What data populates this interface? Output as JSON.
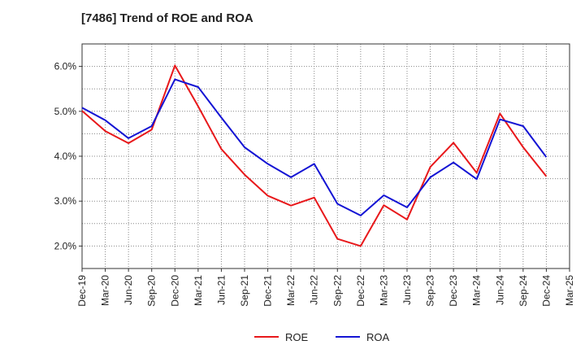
{
  "chart_data": {
    "type": "line",
    "title": "[7486]  Trend of ROE and ROA",
    "x": [
      "Dec-19",
      "Mar-20",
      "Jun-20",
      "Sep-20",
      "Dec-20",
      "Mar-21",
      "Jun-21",
      "Sep-21",
      "Dec-21",
      "Mar-22",
      "Jun-22",
      "Sep-22",
      "Dec-22",
      "Mar-23",
      "Jun-23",
      "Sep-23",
      "Dec-23",
      "Mar-24",
      "Jun-24",
      "Sep-24",
      "Dec-24",
      "Mar-25"
    ],
    "series": [
      {
        "name": "ROE",
        "color": "#e8181b",
        "values": [
          5.01,
          4.56,
          4.29,
          4.59,
          6.02,
          5.11,
          4.16,
          3.59,
          3.12,
          2.9,
          3.08,
          2.16,
          2.0,
          2.91,
          2.59,
          3.76,
          4.3,
          3.63,
          4.95,
          4.2,
          3.55,
          null
        ]
      },
      {
        "name": "ROA",
        "color": "#1414d4",
        "values": [
          5.08,
          4.8,
          4.4,
          4.67,
          5.71,
          5.54,
          4.86,
          4.2,
          3.83,
          3.53,
          3.83,
          2.94,
          2.68,
          3.13,
          2.86,
          3.53,
          3.86,
          3.49,
          4.82,
          4.67,
          3.98,
          null
        ]
      }
    ],
    "y_ticks": [
      "2.0%",
      "3.0%",
      "4.0%",
      "5.0%",
      "6.0%"
    ],
    "ylim": [
      1.5,
      6.5
    ],
    "grid": true,
    "legend": "bottom-center"
  }
}
